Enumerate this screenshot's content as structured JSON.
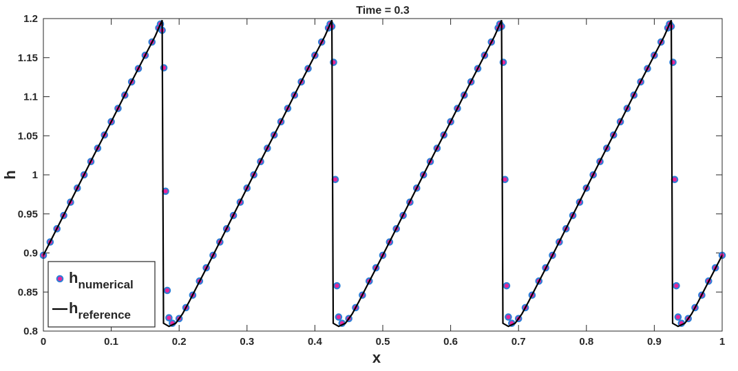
{
  "chart_data": {
    "type": "combo",
    "title": "Time = 0.3",
    "x_label": "x",
    "y_label": "h",
    "xlim": [
      0,
      1
    ],
    "ylim": [
      0.8,
      1.2
    ],
    "xticks": [
      0,
      0.1,
      0.2,
      0.3,
      0.4,
      0.5,
      0.6,
      0.7,
      0.8,
      0.9,
      1
    ],
    "yticks": [
      0.8,
      0.85,
      0.9,
      0.95,
      1,
      1.05,
      1.1,
      1.15,
      1.2
    ],
    "legend": "lower left",
    "series": [
      {
        "name": "h",
        "subscript": "numerical",
        "type": "scatter",
        "color": "#e6259a",
        "edge_color": "#2f7fd6",
        "x": [
          0,
          0.01,
          0.02,
          0.03,
          0.04,
          0.05,
          0.06,
          0.07,
          0.08,
          0.09,
          0.1,
          0.11,
          0.12,
          0.13,
          0.14,
          0.15,
          0.16,
          0.17,
          0.1725,
          0.175,
          0.1775,
          0.18,
          0.1825,
          0.185,
          0.19,
          0.2,
          0.21,
          0.22,
          0.23,
          0.24,
          0.25,
          0.26,
          0.27,
          0.28,
          0.29,
          0.3,
          0.31,
          0.32,
          0.33,
          0.34,
          0.35,
          0.36,
          0.37,
          0.38,
          0.39,
          0.4,
          0.41,
          0.42,
          0.4225,
          0.425,
          0.4275,
          0.43,
          0.4325,
          0.435,
          0.44,
          0.45,
          0.46,
          0.47,
          0.48,
          0.49,
          0.5,
          0.51,
          0.52,
          0.53,
          0.54,
          0.55,
          0.56,
          0.57,
          0.58,
          0.59,
          0.6,
          0.61,
          0.62,
          0.63,
          0.64,
          0.65,
          0.66,
          0.67,
          0.6725,
          0.675,
          0.6775,
          0.68,
          0.6825,
          0.685,
          0.69,
          0.7,
          0.71,
          0.72,
          0.73,
          0.74,
          0.75,
          0.76,
          0.77,
          0.78,
          0.79,
          0.8,
          0.81,
          0.82,
          0.83,
          0.84,
          0.85,
          0.86,
          0.87,
          0.88,
          0.89,
          0.9,
          0.91,
          0.92,
          0.9225,
          0.925,
          0.9275,
          0.93,
          0.9325,
          0.935,
          0.94,
          0.95,
          0.96,
          0.97,
          0.98,
          0.99,
          1
        ],
        "values": [
          0.897,
          0.914,
          0.931,
          0.948,
          0.965,
          0.983,
          1.0,
          1.017,
          1.034,
          1.051,
          1.068,
          1.085,
          1.102,
          1.119,
          1.136,
          1.153,
          1.17,
          1.188,
          1.193,
          1.185,
          1.137,
          0.979,
          0.852,
          0.817,
          0.81,
          0.816,
          0.83,
          0.846,
          0.864,
          0.881,
          0.897,
          0.914,
          0.931,
          0.948,
          0.965,
          0.983,
          1.0,
          1.017,
          1.034,
          1.051,
          1.068,
          1.085,
          1.102,
          1.119,
          1.136,
          1.153,
          1.17,
          1.188,
          1.193,
          1.19,
          1.144,
          0.994,
          0.858,
          0.818,
          0.81,
          0.816,
          0.83,
          0.846,
          0.864,
          0.881,
          0.897,
          0.914,
          0.931,
          0.948,
          0.965,
          0.983,
          1.0,
          1.017,
          1.034,
          1.051,
          1.068,
          1.085,
          1.102,
          1.119,
          1.136,
          1.153,
          1.17,
          1.188,
          1.193,
          1.19,
          1.144,
          0.994,
          0.858,
          0.818,
          0.81,
          0.816,
          0.83,
          0.846,
          0.864,
          0.881,
          0.897,
          0.914,
          0.931,
          0.948,
          0.965,
          0.983,
          1.0,
          1.017,
          1.034,
          1.051,
          1.068,
          1.085,
          1.102,
          1.119,
          1.136,
          1.153,
          1.17,
          1.188,
          1.193,
          1.19,
          1.144,
          0.994,
          0.858,
          0.818,
          0.81,
          0.816,
          0.83,
          0.846,
          0.864,
          0.881,
          0.897
        ]
      },
      {
        "name": "h",
        "subscript": "reference",
        "type": "line",
        "color": "#000000",
        "x": [
          0,
          0.025,
          0.05,
          0.075,
          0.1,
          0.125,
          0.15,
          0.165,
          0.172,
          0.175,
          0.177,
          0.185,
          0.195,
          0.205,
          0.215,
          0.225,
          0.25,
          0.275,
          0.3,
          0.325,
          0.35,
          0.375,
          0.4,
          0.415,
          0.422,
          0.425,
          0.427,
          0.435,
          0.445,
          0.455,
          0.465,
          0.475,
          0.5,
          0.525,
          0.55,
          0.575,
          0.6,
          0.625,
          0.65,
          0.665,
          0.672,
          0.675,
          0.677,
          0.685,
          0.695,
          0.705,
          0.715,
          0.725,
          0.75,
          0.775,
          0.8,
          0.825,
          0.85,
          0.875,
          0.9,
          0.915,
          0.922,
          0.925,
          0.927,
          0.935,
          0.945,
          0.955,
          0.965,
          0.975,
          1
        ],
        "values": [
          0.897,
          0.94,
          0.983,
          1.026,
          1.068,
          1.111,
          1.153,
          1.178,
          1.192,
          1.198,
          0.81,
          0.806,
          0.81,
          0.822,
          0.838,
          0.855,
          0.897,
          0.94,
          0.983,
          1.026,
          1.068,
          1.111,
          1.153,
          1.178,
          1.192,
          1.198,
          0.81,
          0.806,
          0.81,
          0.822,
          0.838,
          0.855,
          0.897,
          0.94,
          0.983,
          1.026,
          1.068,
          1.111,
          1.153,
          1.178,
          1.192,
          1.198,
          0.81,
          0.806,
          0.81,
          0.822,
          0.838,
          0.855,
          0.897,
          0.94,
          0.983,
          1.026,
          1.068,
          1.111,
          1.153,
          1.178,
          1.192,
          1.198,
          0.81,
          0.806,
          0.81,
          0.822,
          0.838,
          0.855,
          0.897
        ]
      }
    ]
  }
}
